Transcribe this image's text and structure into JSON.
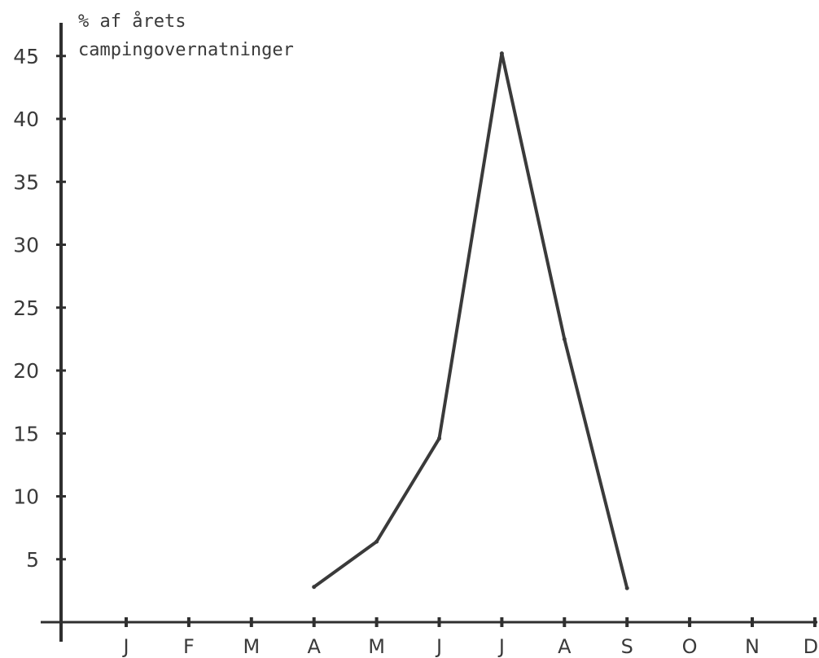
{
  "chart_data": {
    "type": "line",
    "ylabel": "% af årets campingovernatninger",
    "ylabel_lines": [
      "% af årets",
      "campingovernatninger"
    ],
    "categories": [
      "J",
      "F",
      "M",
      "A",
      "M",
      "J",
      "J",
      "A",
      "S",
      "O",
      "N",
      "D"
    ],
    "x": [
      "A",
      "M",
      "J",
      "J",
      "A",
      "S"
    ],
    "values": [
      2.8,
      6.4,
      14.6,
      45.2,
      22.5,
      2.7
    ],
    "yticks": [
      5,
      10,
      15,
      20,
      25,
      30,
      35,
      40,
      45
    ],
    "ylim": [
      0,
      45
    ],
    "grid": false,
    "colors": {
      "line": "#3a3a3a",
      "axis": "#2f2f2f",
      "text": "#3a3a3a"
    }
  }
}
